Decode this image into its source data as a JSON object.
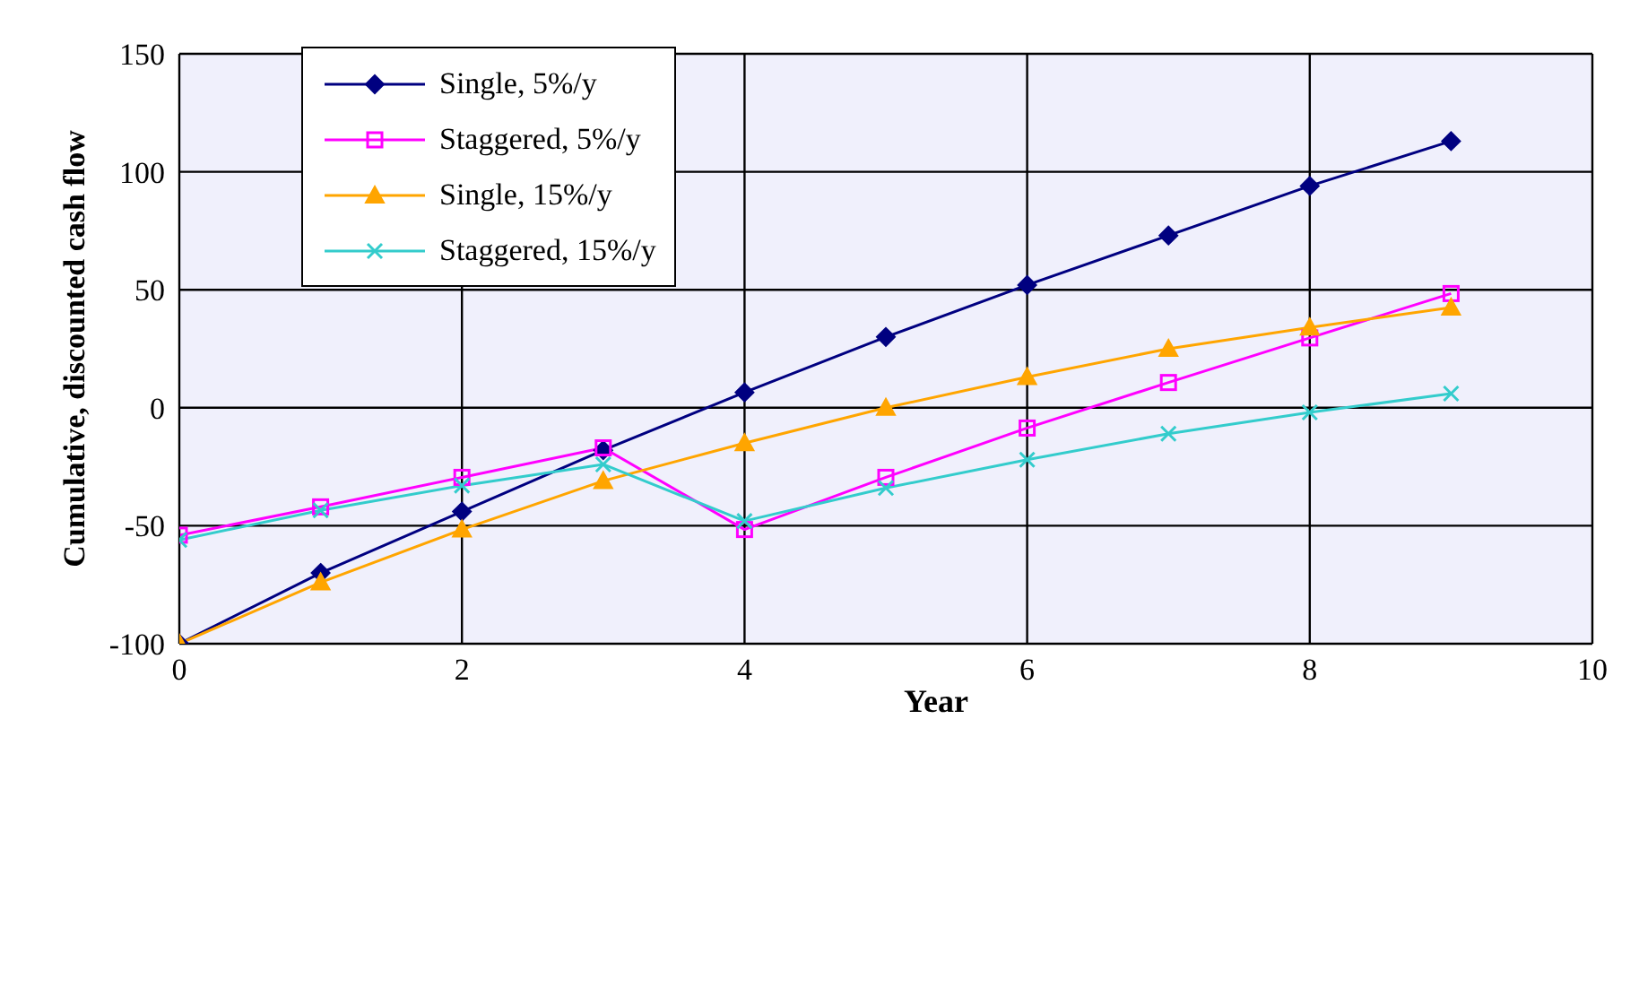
{
  "chart_data": {
    "type": "line",
    "xlabel": "Year",
    "ylabel": "Cumulative, discounted cash flow",
    "x": [
      0,
      1,
      2,
      3,
      4,
      5,
      6,
      7,
      8,
      9
    ],
    "xlim": [
      0,
      10
    ],
    "xticks": [
      0,
      2,
      4,
      6,
      8,
      10
    ],
    "ylim": [
      -100,
      150
    ],
    "yticks": [
      -100,
      -50,
      0,
      50,
      100,
      150
    ],
    "grid": true,
    "legend": "top left",
    "series": [
      {
        "name": "Single, 5%/y",
        "color": "#000080",
        "marker": "diamond",
        "values": [
          -100,
          -70,
          -44,
          -18,
          6.5,
          30,
          52,
          73,
          94,
          113
        ]
      },
      {
        "name": "Staggered, 5%/y",
        "color": "#ff00ff",
        "marker": "square",
        "values": [
          -54,
          -42,
          -29.5,
          -17,
          -51.6,
          -29.5,
          -8.6,
          10.7,
          29.6,
          48.4
        ]
      },
      {
        "name": "Single, 15%/y",
        "color": "#ffa500",
        "marker": "triangle",
        "values": [
          -100,
          -74,
          -51.6,
          -31,
          -15,
          0,
          13,
          25,
          34,
          42.5
        ]
      },
      {
        "name": "Staggered, 15%/y",
        "color": "#33cccc",
        "marker": "cross",
        "values": [
          -56,
          -43.5,
          -33,
          -24,
          -48,
          -34,
          -22,
          -11,
          -2,
          6
        ]
      }
    ]
  }
}
